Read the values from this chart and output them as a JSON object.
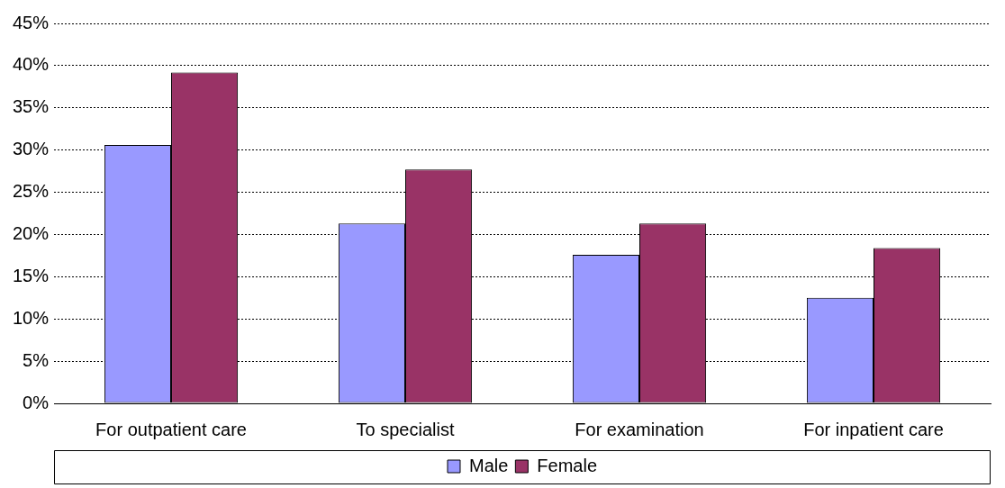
{
  "chart_data": {
    "type": "bar",
    "categories": [
      "For outpatient care",
      "To specialist",
      "For examination",
      "For inpatient care"
    ],
    "series": [
      {
        "name": "Male",
        "color": "#9999ff",
        "values": [
          30.6,
          21.3,
          17.6,
          12.5
        ]
      },
      {
        "name": "Female",
        "color": "#993366",
        "values": [
          39.2,
          27.7,
          21.3,
          18.4
        ]
      }
    ],
    "ylim": [
      0,
      45
    ],
    "yticks": [
      {
        "value": 0,
        "label": "0%"
      },
      {
        "value": 5,
        "label": "5%"
      },
      {
        "value": 10,
        "label": "10%"
      },
      {
        "value": 15,
        "label": "15%"
      },
      {
        "value": 20,
        "label": "20%"
      },
      {
        "value": 25,
        "label": "25%"
      },
      {
        "value": 30,
        "label": "30%"
      },
      {
        "value": 35,
        "label": "35%"
      },
      {
        "value": 40,
        "label": "40%"
      },
      {
        "value": 45,
        "label": "45%"
      }
    ],
    "grid": "y",
    "legend": "bottom"
  }
}
